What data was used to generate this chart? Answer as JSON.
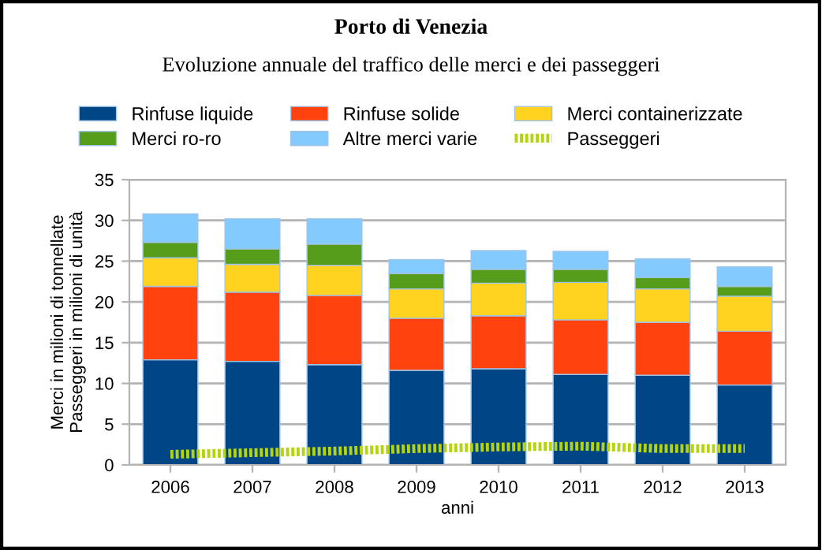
{
  "chart_data": {
    "type": "bar",
    "title": "Porto di Venezia",
    "subtitle": "Evoluzione annuale del traffico delle merci e dei passeggeri",
    "xlabel": "anni",
    "ylabel": "Merci in milioni di tonnellate\nPasseggeri in milioni di unità",
    "categories": [
      "2006",
      "2007",
      "2008",
      "2009",
      "2010",
      "2011",
      "2012",
      "2013"
    ],
    "stacked": true,
    "series": [
      {
        "name": "Rinfuse liquide",
        "color": "#004586",
        "values": [
          12.9,
          12.7,
          12.3,
          11.6,
          11.8,
          11.1,
          11.0,
          9.8
        ]
      },
      {
        "name": "Rinfuse solide",
        "color": "#ff420e",
        "values": [
          9.0,
          8.5,
          8.5,
          6.4,
          6.5,
          6.7,
          6.5,
          6.6
        ]
      },
      {
        "name": "Merci containerizzate",
        "color": "#ffd320",
        "values": [
          3.5,
          3.4,
          3.7,
          3.6,
          4.0,
          4.6,
          4.1,
          4.3
        ]
      },
      {
        "name": "Merci ro-ro",
        "color": "#579d1c",
        "values": [
          1.9,
          1.9,
          2.6,
          1.9,
          1.7,
          1.6,
          1.4,
          1.2
        ]
      },
      {
        "name": "Altre merci varie",
        "color": "#83caff",
        "values": [
          3.5,
          3.7,
          3.1,
          1.7,
          2.3,
          2.2,
          2.3,
          2.4
        ]
      },
      {
        "name": "Passeggeri",
        "type": "line",
        "line_style": "dotted",
        "color": "#b5d40b",
        "values": [
          1.3,
          1.5,
          1.7,
          2.0,
          2.2,
          2.3,
          2.0,
          2.0
        ]
      }
    ],
    "ylim": [
      0,
      35
    ],
    "yticks": [
      0,
      5,
      10,
      15,
      20,
      25,
      30,
      35
    ],
    "grid": "y",
    "legend": "top"
  }
}
